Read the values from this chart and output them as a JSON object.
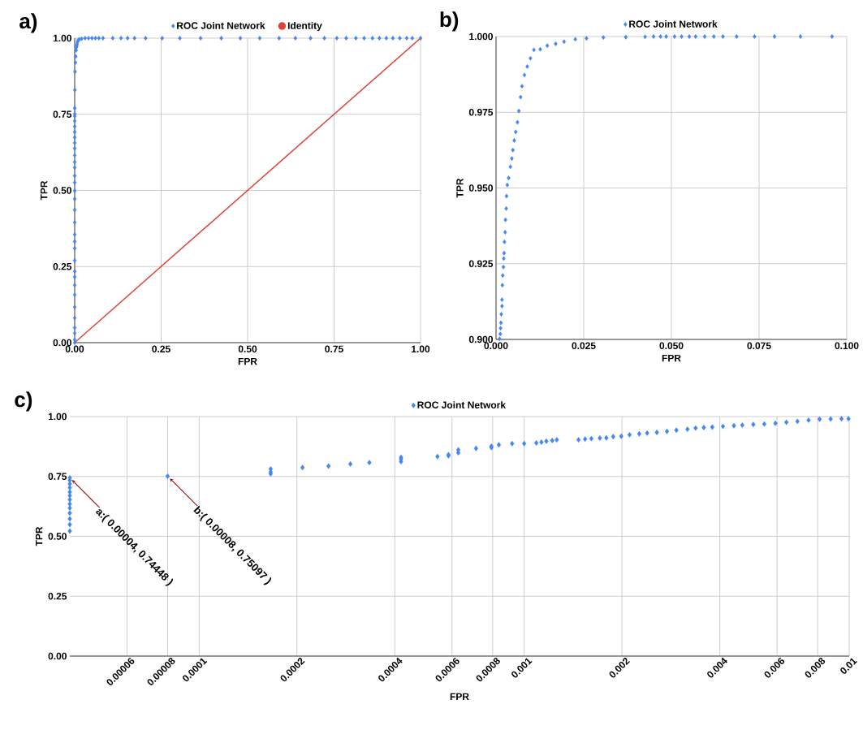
{
  "chart_data": [
    {
      "type": "scatter",
      "title": "a)",
      "xlabel": "FPR",
      "ylabel": "TPR",
      "xlim": [
        0,
        1
      ],
      "ylim": [
        0,
        1
      ],
      "xticks": [
        {
          "value": 0,
          "label": "0.00"
        },
        {
          "value": 0.25,
          "label": "0.25"
        },
        {
          "value": 0.5,
          "label": "0.50"
        },
        {
          "value": 0.75,
          "label": "0.75"
        },
        {
          "value": 1,
          "label": "1.00"
        }
      ],
      "yticks": [
        {
          "value": 0,
          "label": "0.00"
        },
        {
          "value": 0.25,
          "label": "0.25"
        },
        {
          "value": 0.5,
          "label": "0.50"
        },
        {
          "value": 0.75,
          "label": "0.75"
        },
        {
          "value": 1,
          "label": "1.00"
        }
      ],
      "grid": true,
      "legend": "top",
      "marker": "diamond",
      "series": [
        {
          "name": "ROC Joint Network",
          "color": "#4285f4",
          "x": [
            0,
            4e-05,
            4e-05,
            4e-05,
            4e-05,
            4e-05,
            4e-05,
            4e-05,
            4e-05,
            4e-05,
            4e-05,
            4e-05,
            4e-05,
            4e-05,
            4e-05,
            4e-05,
            4e-05,
            4e-05,
            4e-05,
            4e-05,
            4e-05,
            4e-05,
            4e-05,
            4e-05,
            4e-05,
            4e-05,
            4e-05,
            4e-05,
            4e-05,
            4e-05,
            8e-05,
            0.00017,
            0.0005,
            0.001,
            0.002,
            0.003,
            0.004,
            0.005,
            0.006,
            0.007,
            0.008,
            0.01,
            0.013,
            0.02,
            0.03,
            0.04,
            0.05,
            0.06,
            0.07,
            0.082,
            0.11,
            0.134,
            0.153,
            0.173,
            0.205,
            0.253,
            0.304,
            0.364,
            0.424,
            0.479,
            0.535,
            0.591,
            0.638,
            0.682,
            0.722,
            0.758,
            0.785,
            0.813,
            0.837,
            0.861,
            0.881,
            0.901,
            0.92,
            0.94,
            0.96,
            0.976,
            1.0
          ],
          "values": [
            0,
            0.009,
            0.031,
            0.049,
            0.081,
            0.117,
            0.157,
            0.189,
            0.216,
            0.234,
            0.27,
            0.31,
            0.332,
            0.355,
            0.395,
            0.436,
            0.472,
            0.499,
            0.526,
            0.548,
            0.575,
            0.593,
            0.615,
            0.638,
            0.656,
            0.674,
            0.692,
            0.71,
            0.728,
            0.744,
            0.751,
            0.77,
            0.83,
            0.89,
            0.92,
            0.94,
            0.96,
            0.97,
            0.975,
            0.98,
            0.987,
            0.993,
            0.996,
            0.998,
            1,
            1,
            1,
            1,
            1,
            1,
            1,
            1,
            1,
            1,
            1,
            1,
            1,
            1,
            1,
            1,
            1,
            1,
            1,
            1,
            1,
            1,
            1,
            1,
            1,
            1,
            1,
            1,
            1,
            1,
            1,
            1,
            1
          ]
        },
        {
          "name": "Identity",
          "type": "line",
          "marker": "none",
          "color": "#db4437",
          "x": [
            0,
            1
          ],
          "values": [
            0,
            1
          ]
        }
      ]
    },
    {
      "type": "scatter",
      "title": "b)",
      "xlabel": "FPR",
      "ylabel": "TPR",
      "xlim": [
        0,
        0.1
      ],
      "ylim": [
        0.9,
        1.0
      ],
      "xticks": [
        {
          "value": 0,
          "label": "0.000"
        },
        {
          "value": 0.025,
          "label": "0.025"
        },
        {
          "value": 0.05,
          "label": "0.050"
        },
        {
          "value": 0.075,
          "label": "0.075"
        },
        {
          "value": 0.1,
          "label": "0.100"
        }
      ],
      "yticks": [
        {
          "value": 0.9,
          "label": "0.900"
        },
        {
          "value": 0.925,
          "label": "0.925"
        },
        {
          "value": 0.95,
          "label": "0.950"
        },
        {
          "value": 0.975,
          "label": "0.975"
        },
        {
          "value": 1.0,
          "label": "1.000"
        }
      ],
      "grid": true,
      "legend": "top",
      "marker": "diamond",
      "series": [
        {
          "name": "ROC Joint Network",
          "color": "#4285f4",
          "x": [
            0.001,
            0.0012,
            0.0013,
            0.0014,
            0.0015,
            0.0017,
            0.0017,
            0.0018,
            0.0019,
            0.0021,
            0.0022,
            0.0023,
            0.0024,
            0.0026,
            0.0027,
            0.0029,
            0.003,
            0.0032,
            0.0036,
            0.0041,
            0.0045,
            0.0048,
            0.0052,
            0.0056,
            0.0061,
            0.0065,
            0.007,
            0.0074,
            0.0081,
            0.0089,
            0.0098,
            0.0108,
            0.0126,
            0.0146,
            0.017,
            0.0194,
            0.0226,
            0.0258,
            0.0306,
            0.037,
            0.0425,
            0.0449,
            0.0469,
            0.0485,
            0.0509,
            0.0529,
            0.0551,
            0.0569,
            0.0595,
            0.0621,
            0.0647,
            0.0686,
            0.0737,
            0.0794,
            0.0868,
            0.0958
          ],
          "values": [
            0.9002,
            0.9018,
            0.9037,
            0.9055,
            0.9083,
            0.911,
            0.9131,
            0.9179,
            0.9211,
            0.9239,
            0.9267,
            0.9285,
            0.9322,
            0.9354,
            0.9395,
            0.9432,
            0.9473,
            0.951,
            0.9533,
            0.957,
            0.9597,
            0.9625,
            0.9657,
            0.9685,
            0.9717,
            0.9754,
            0.98,
            0.9836,
            0.9873,
            0.9901,
            0.9928,
            0.9956,
            0.9958,
            0.997,
            0.9976,
            0.9983,
            0.9991,
            0.9994,
            0.9997,
            0.9998,
            0.9999,
            1,
            1,
            1,
            1,
            1,
            1,
            1,
            1,
            1,
            1,
            1,
            1,
            1,
            1,
            1
          ]
        }
      ]
    },
    {
      "type": "scatter",
      "title": "c)",
      "xlabel": "FPR",
      "ylabel": "TPR",
      "log": "x",
      "xlim": [
        4e-05,
        0.01
      ],
      "ylim": [
        0,
        1
      ],
      "xticks": [
        {
          "value": 6e-05,
          "label": "0.00006"
        },
        {
          "value": 8e-05,
          "label": "0.00008"
        },
        {
          "value": 0.0001,
          "label": "0.0001"
        },
        {
          "value": 0.0002,
          "label": "0.0002"
        },
        {
          "value": 0.0004,
          "label": "0.0004"
        },
        {
          "value": 0.0006,
          "label": "0.0006"
        },
        {
          "value": 0.0008,
          "label": "0.0008"
        },
        {
          "value": 0.001,
          "label": "0.001"
        },
        {
          "value": 0.002,
          "label": "0.002"
        },
        {
          "value": 0.004,
          "label": "0.004"
        },
        {
          "value": 0.006,
          "label": "0.006"
        },
        {
          "value": 0.008,
          "label": "0.008"
        },
        {
          "value": 0.01,
          "label": "0.01"
        }
      ],
      "yticks": [
        {
          "value": 0,
          "label": "0.00"
        },
        {
          "value": 0.25,
          "label": "0.25"
        },
        {
          "value": 0.5,
          "label": "0.50"
        },
        {
          "value": 0.75,
          "label": "0.75"
        },
        {
          "value": 1,
          "label": "1.00"
        }
      ],
      "grid": true,
      "legend": "top",
      "marker": "diamond",
      "annotations": [
        {
          "text": "a:( 0.00004, 0.74448 )",
          "x": 4e-05,
          "y": 0.74448
        },
        {
          "text": "b:( 0.00008, 0.75097 )",
          "x": 8e-05,
          "y": 0.75097
        }
      ],
      "series": [
        {
          "name": "ROC Joint Network",
          "color": "#4285f4",
          "x": [
            4e-05,
            4e-05,
            4e-05,
            4e-05,
            4e-05,
            4e-05,
            4e-05,
            4e-05,
            4e-05,
            4e-05,
            4e-05,
            4e-05,
            4e-05,
            8e-05,
            0.000166,
            0.000166,
            0.000166,
            0.000208,
            0.00025,
            0.000292,
            0.000334,
            0.000418,
            0.000418,
            0.000418,
            0.000541,
            0.000585,
            0.000585,
            0.000627,
            0.000627,
            0.000711,
            0.000793,
            0.000793,
            0.000836,
            0.000918,
            0.001,
            0.00109,
            0.00113,
            0.00117,
            0.00122,
            0.00126,
            0.00147,
            0.00154,
            0.00161,
            0.00171,
            0.00179,
            0.00188,
            0.00199,
            0.00211,
            0.00226,
            0.00239,
            0.00256,
            0.00275,
            0.00294,
            0.00318,
            0.00337,
            0.00357,
            0.00379,
            0.00409,
            0.00442,
            0.00469,
            0.00507,
            0.00548,
            0.00593,
            0.00641,
            0.00693,
            0.0075,
            0.00811,
            0.00877,
            0.00947,
            0.00995
          ],
          "values": [
            0.74448,
            0.734,
            0.719,
            0.703,
            0.685,
            0.67,
            0.653,
            0.635,
            0.618,
            0.597,
            0.573,
            0.549,
            0.522,
            0.75097,
            0.781,
            0.769,
            0.761,
            0.787,
            0.793,
            0.802,
            0.808,
            0.83,
            0.822,
            0.812,
            0.833,
            0.841,
            0.836,
            0.861,
            0.849,
            0.867,
            0.876,
            0.87,
            0.882,
            0.887,
            0.887,
            0.89,
            0.893,
            0.897,
            0.9,
            0.903,
            0.903,
            0.906,
            0.908,
            0.91,
            0.911,
            0.916,
            0.918,
            0.924,
            0.928,
            0.931,
            0.934,
            0.938,
            0.943,
            0.947,
            0.952,
            0.954,
            0.956,
            0.959,
            0.962,
            0.964,
            0.967,
            0.969,
            0.972,
            0.976,
            0.98,
            0.985,
            0.989,
            0.99,
            0.991,
            0.991
          ]
        }
      ]
    }
  ]
}
